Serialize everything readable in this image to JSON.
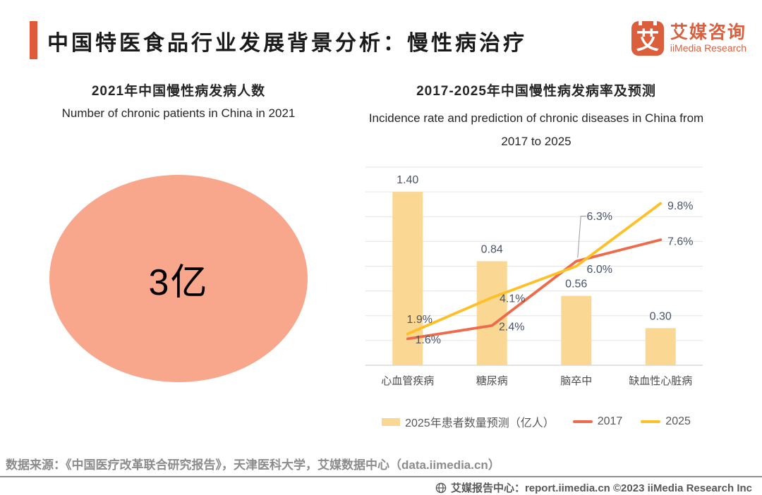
{
  "header": {
    "title": "中国特医食品行业发展背景分析：慢性病治疗",
    "accent_color": "#E05A3A",
    "logo": {
      "glyph": "艾",
      "name_zh": "艾媒咨询",
      "name_en": "iiMedia Research",
      "color": "#DC5F3D"
    }
  },
  "left_panel": {
    "title_zh": "2021年中国慢性病发病人数",
    "title_en": "Number of chronic patients in China in 2021",
    "value": "3亿",
    "circle_color": "#F9A78C"
  },
  "right_panel": {
    "title_zh": "2017-2025年中国慢性病发病率及预测",
    "title_en_line1": "Incidence rate and prediction of chronic diseases in China from",
    "title_en_line2": "2017 to 2025"
  },
  "chart_data": {
    "type": "bar+line",
    "title": "2017-2025年中国慢性病发病率及预测",
    "categories": [
      "心血管疾病",
      "糖尿病",
      "脑卒中",
      "缺血性心脏病"
    ],
    "bar_series": {
      "name": "2025年患者数量预测（亿人）",
      "values": [
        1.4,
        0.84,
        0.56,
        0.3
      ],
      "labels": [
        "1.40",
        "0.84",
        "0.56",
        "0.30"
      ],
      "color": "#FAD894",
      "axis_max": 1.6
    },
    "line_series": [
      {
        "name": "2017",
        "values_pct": [
          1.6,
          2.4,
          6.3,
          7.6
        ],
        "labels": [
          "1.6%",
          "2.4%",
          "6.3%",
          "7.6%"
        ],
        "color": "#EF6A4B"
      },
      {
        "name": "2025",
        "values_pct": [
          1.9,
          4.1,
          6.0,
          9.8
        ],
        "labels": [
          "1.9%",
          "4.1%",
          "6.0%",
          "9.8%"
        ],
        "color": "#FFBF27"
      }
    ],
    "line_axis_max_pct": 12,
    "gridline_count": 9,
    "grid": true,
    "legend_position": "bottom"
  },
  "source_line": "数据来源：《中国医疗改革联合研究报告》，天津医科大学，艾媒数据中心（data.iimedia.cn）",
  "footer": {
    "text": "艾媒报告中心：report.iimedia.cn  ©2023  iiMedia Research Inc"
  }
}
